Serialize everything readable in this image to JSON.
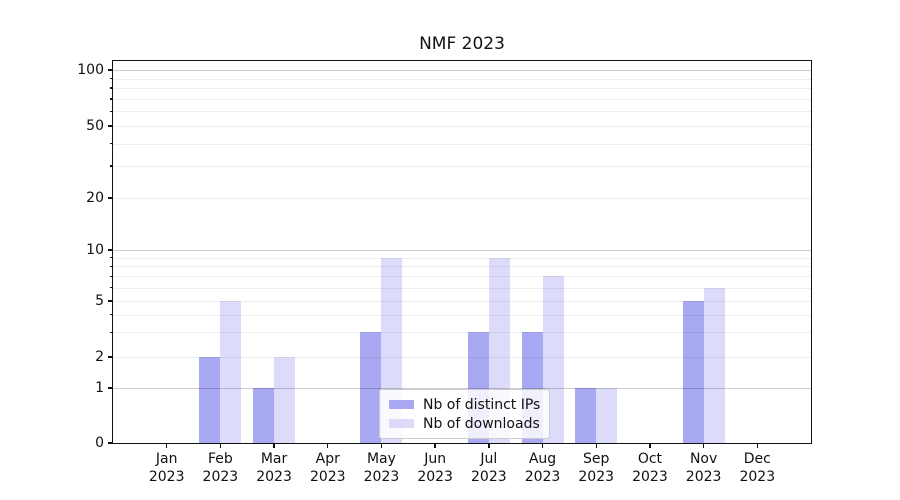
{
  "chart_data": {
    "type": "bar",
    "title": "NMF 2023",
    "xlabel": "",
    "ylabel": "",
    "categories": [
      "Jan 2023",
      "Feb 2023",
      "Mar 2023",
      "Apr 2023",
      "May 2023",
      "Jun 2023",
      "Jul 2023",
      "Aug 2023",
      "Sep 2023",
      "Oct 2023",
      "Nov 2023",
      "Dec 2023"
    ],
    "series": [
      {
        "name": "Nb of distinct IPs",
        "color": "#a9a9f3",
        "values": [
          0,
          2,
          1,
          0,
          3,
          0,
          3,
          3,
          1,
          0,
          5,
          0
        ]
      },
      {
        "name": "Nb of downloads",
        "color": "#dcdcfa",
        "values": [
          0,
          5,
          2,
          0,
          9,
          0,
          9,
          7,
          1,
          0,
          6,
          0
        ]
      }
    ],
    "yaxis": {
      "scale": "symlog",
      "ylim": [
        0,
        112
      ],
      "ticks": [
        0,
        1,
        2,
        5,
        10,
        20,
        50,
        100
      ],
      "tick_labels": [
        "0",
        "1",
        "2",
        "5",
        "10",
        "20",
        "50",
        "100"
      ],
      "major_gridlines": [
        1,
        10,
        100
      ],
      "minor_gridlines": [
        2,
        3,
        4,
        5,
        6,
        7,
        8,
        9,
        20,
        30,
        40,
        50,
        60,
        70,
        80,
        90
      ],
      "minor_ticks": [
        3,
        4,
        6,
        7,
        8,
        9,
        30,
        40,
        60,
        70,
        80,
        90
      ]
    },
    "grid": true,
    "legend_position": "lower center"
  }
}
